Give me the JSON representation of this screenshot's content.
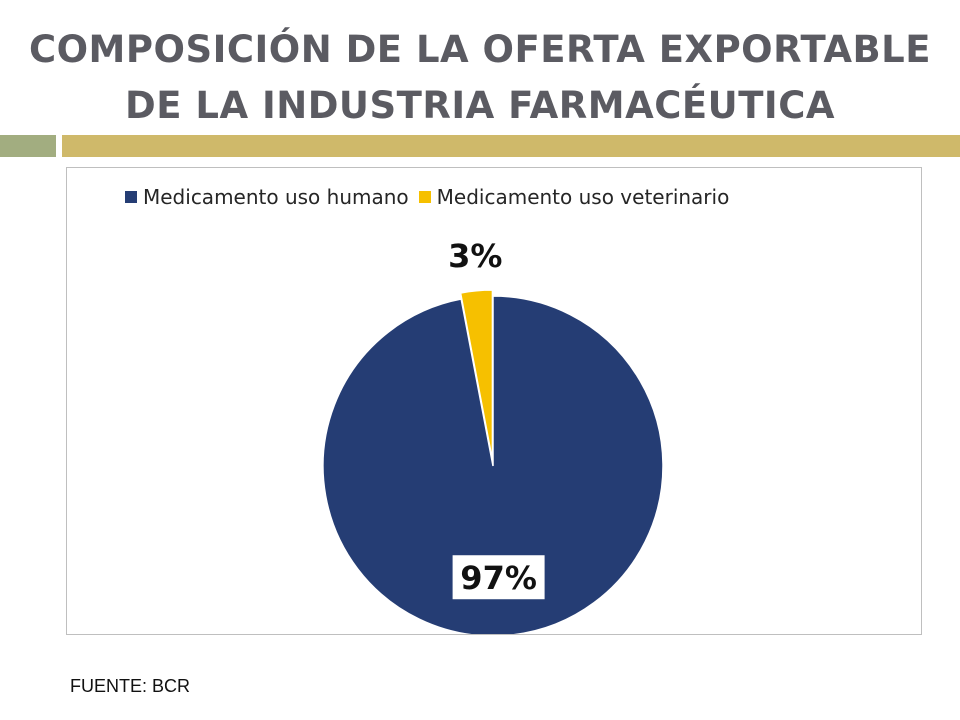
{
  "slide": {
    "title_line1": "COMPOSICIÓN DE LA OFERTA EXPORTABLE",
    "title_line2": "DE LA INDUSTRIA FARMACÉUTICA",
    "source": "FUENTE: BCR",
    "title_color": "#5b5b62",
    "band_colors": [
      "#a2ad80",
      "#cfb96a"
    ]
  },
  "chart_data": {
    "type": "pie",
    "title": "",
    "legend_position": "top",
    "categories": [
      "Medicamento uso humano",
      "Medicamento uso veterinario"
    ],
    "values": [
      97,
      3
    ],
    "labels": [
      "97%",
      "3%"
    ],
    "colors": [
      "#253d74",
      "#f6c000"
    ],
    "exploded": [
      false,
      true
    ]
  }
}
